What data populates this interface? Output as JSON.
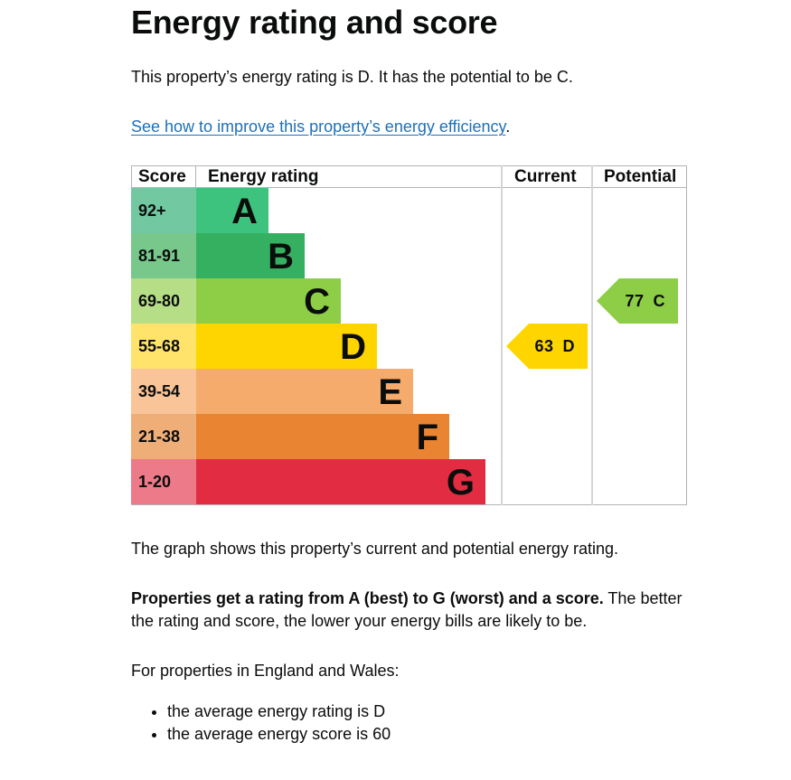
{
  "title": "Energy rating and score",
  "intro": "This property’s energy rating is D. It has the potential to be C.",
  "improve_link": "See how to improve this property’s energy efficiency",
  "improve_link_suffix": ".",
  "graph": {
    "headers": {
      "score": "Score",
      "rating": "Energy rating",
      "current": "Current",
      "potential": "Potential"
    },
    "bands": [
      {
        "score": "92+",
        "letter": "A",
        "color": "#3ec37f",
        "score_bg": "#72c9a1"
      },
      {
        "score": "81-91",
        "letter": "B",
        "color": "#34b060",
        "score_bg": "#78c88c"
      },
      {
        "score": "69-80",
        "letter": "C",
        "color": "#8dce46",
        "score_bg": "#b5de86"
      },
      {
        "score": "55-68",
        "letter": "D",
        "color": "#ffd500",
        "score_bg": "#ffe36b"
      },
      {
        "score": "39-54",
        "letter": "E",
        "color": "#f5ab6b",
        "score_bg": "#f8c498"
      },
      {
        "score": "21-38",
        "letter": "F",
        "color": "#e88432",
        "score_bg": "#efae78"
      },
      {
        "score": "1-20",
        "letter": "G",
        "color": "#e22c41",
        "score_bg": "#ec7a88"
      }
    ],
    "current": {
      "score": "63",
      "letter": "D",
      "color": "#ffd500"
    },
    "potential": {
      "score": "77",
      "letter": "C",
      "color": "#8dce46"
    }
  },
  "graph_caption": "The graph shows this property’s current and potential energy rating.",
  "ratings_bold": "Properties get a rating from A (best) to G (worst) and a score.",
  "ratings_rest": " The better the rating and score, the lower your energy bills are likely to be.",
  "region_intro": "For properties in England and Wales:",
  "averages": [
    "the average energy rating is D",
    "the average energy score is 60"
  ]
}
